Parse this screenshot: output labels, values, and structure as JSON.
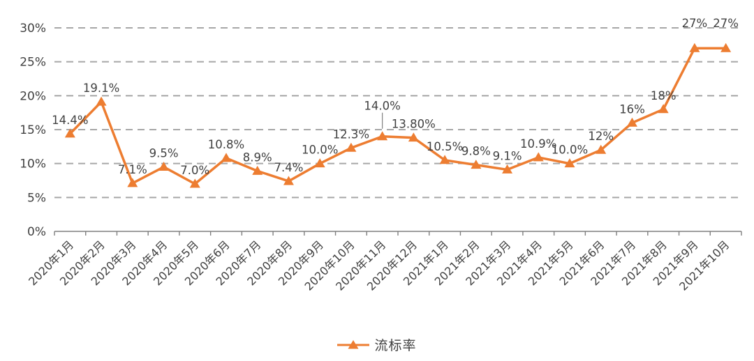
{
  "chart_data": {
    "type": "line",
    "title": "",
    "categories": [
      "2020年1月",
      "2020年2月",
      "2020年3月",
      "2020年4月",
      "2020年5月",
      "2020年6月",
      "2020年7月",
      "2020年8月",
      "2020年9月",
      "2020年10月",
      "2020年11月",
      "2020年12月",
      "2021年1月",
      "2021年2月",
      "2021年3月",
      "2021年4月",
      "2021年5月",
      "2021年6月",
      "2021年7月",
      "2021年8月",
      "2021年9月",
      "2021年10月"
    ],
    "series": [
      {
        "name": "流标率",
        "values": [
          14.4,
          19.1,
          7.1,
          9.5,
          7.0,
          10.8,
          8.9,
          7.4,
          10.0,
          12.3,
          14.0,
          13.8,
          10.5,
          9.8,
          9.1,
          10.9,
          10.0,
          12,
          16,
          18,
          27,
          27
        ],
        "labels": [
          "14.4%",
          "19.1%",
          "7.1%",
          "9.5%",
          "7.0%",
          "10.8%",
          "8.9%",
          "7.4%",
          "10.0%",
          "12.3%",
          "14.0%",
          "13.80%",
          "10.5%",
          "9.8%",
          "9.1%",
          "10.9%",
          "10.0%",
          "12%",
          "16%",
          "18%",
          "27%",
          "27%"
        ]
      }
    ],
    "ylim": [
      0,
      30
    ],
    "y_ticks": [
      "0%",
      "5%",
      "10%",
      "15%",
      "20%",
      "25%",
      "30%"
    ],
    "grid": "horizontal-dashed",
    "legend_position": "bottom",
    "x_label_rotation": -45,
    "marker": "triangle",
    "colors": {
      "line": "#ED7D31",
      "grid": "#A6A6A6",
      "axis": "#7F7F7F",
      "text": "#404040"
    },
    "label_dy": [
      null,
      null,
      null,
      null,
      null,
      null,
      null,
      null,
      null,
      null,
      -38,
      null,
      null,
      null,
      null,
      null,
      null,
      null,
      null,
      null,
      -30,
      -30
    ],
    "leader_indexes": [
      10
    ]
  }
}
